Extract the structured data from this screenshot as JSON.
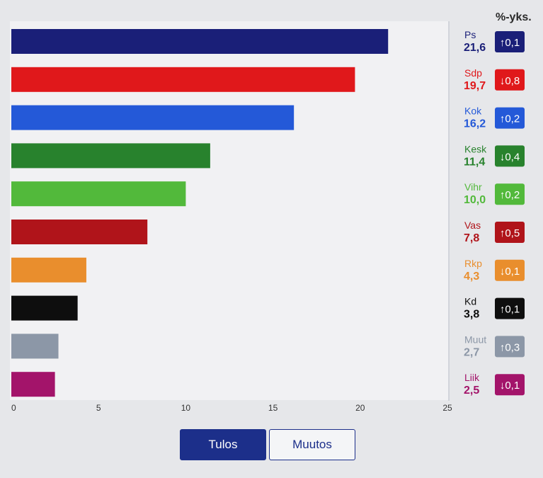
{
  "unit_label": "%-yks.",
  "tabs": {
    "tulos": "Tulos",
    "muutos": "Muutos"
  },
  "chart_data": {
    "type": "bar",
    "orientation": "horizontal",
    "categories": [
      "Ps",
      "Sdp",
      "Kok",
      "Kesk",
      "Vihr",
      "Vas",
      "Rkp",
      "Kd",
      "Muut",
      "Liik"
    ],
    "values": [
      21.6,
      19.7,
      16.2,
      11.4,
      10.0,
      7.8,
      4.3,
      3.8,
      2.7,
      2.5
    ],
    "value_labels": [
      "21,6",
      "19,7",
      "16,2",
      "11,4",
      "10,0",
      "7,8",
      "4,3",
      "3,8",
      "2,7",
      "2,5"
    ],
    "changes": [
      0.1,
      -0.8,
      0.2,
      -0.4,
      0.2,
      0.5,
      -0.1,
      0.1,
      0.3,
      -0.1
    ],
    "change_labels": [
      "↑0,1",
      "↓0,8",
      "↑0,2",
      "↓0,4",
      "↑0,2",
      "↑0,5",
      "↓0,1",
      "↑0,1",
      "↑0,3",
      "↓0,1"
    ],
    "colors": [
      "#1a1f78",
      "#e0181b",
      "#2459d8",
      "#28822d",
      "#52b93b",
      "#b0141a",
      "#e98e2d",
      "#0e0e0e",
      "#8c97a7",
      "#a3146a"
    ],
    "xlim": [
      0,
      25
    ],
    "xticks": [
      0,
      5,
      10,
      15,
      20,
      25
    ],
    "xtick_labels": [
      "0",
      "5",
      "10",
      "15",
      "20",
      "25"
    ],
    "grid": false
  }
}
